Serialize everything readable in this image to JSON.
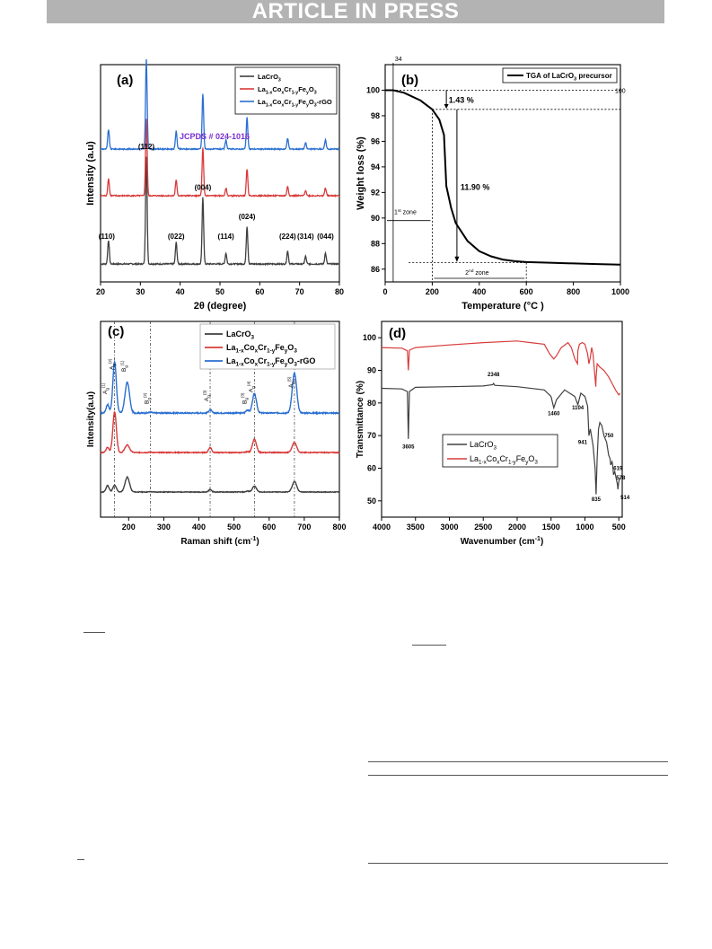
{
  "banner": "ARTICLE IN PRESS",
  "chart_data": [
    {
      "panel": "(a)",
      "type": "line",
      "xlabel": "2θ (degree)",
      "ylabel": "Intensity (a.u)",
      "xlim": [
        20,
        80
      ],
      "xticks": [
        20,
        30,
        40,
        50,
        60,
        70,
        80
      ],
      "annotation": "JCPDS # 024-1016",
      "peaks": [
        {
          "x": 22.0,
          "label": "(110)",
          "h": 0.22
        },
        {
          "x": 31.5,
          "label": "(112)",
          "h": 1.0
        },
        {
          "x": 39.0,
          "label": "(022)",
          "h": 0.2
        },
        {
          "x": 45.7,
          "label": "(004)",
          "h": 0.62
        },
        {
          "x": 51.5,
          "label": "(114)",
          "h": 0.1
        },
        {
          "x": 56.8,
          "label": "(024)",
          "h": 0.35
        },
        {
          "x": 67.0,
          "label": "(224)",
          "h": 0.12
        },
        {
          "x": 71.5,
          "label": "(314)",
          "h": 0.07
        },
        {
          "x": 76.5,
          "label": "(044)",
          "h": 0.1
        }
      ],
      "series": [
        {
          "name": "LaCrO",
          "sub": "3",
          "color": "#404040"
        },
        {
          "name": "La1-xCoxCr1-yFeyO3",
          "color": "#d93b3b"
        },
        {
          "name": "La1-xCoxCr1-yFeyO3-rGO",
          "color": "#2a6fd1"
        }
      ]
    },
    {
      "panel": "(b)",
      "type": "line",
      "xlabel": "Temperature (°C )",
      "ylabel": "Weight loss (%)",
      "xlim": [
        0,
        1000
      ],
      "ylim": [
        85,
        102
      ],
      "xticks": [
        0,
        200,
        400,
        600,
        800,
        1000
      ],
      "yticks": [
        86,
        88,
        90,
        92,
        94,
        96,
        98,
        100
      ],
      "series": [
        {
          "name": "TGA of LaCrO3 precursor",
          "color": "#000000",
          "x": [
            0,
            34,
            80,
            150,
            200,
            230,
            250,
            255,
            260,
            280,
            300,
            350,
            400,
            450,
            500,
            550,
            600,
            700,
            800,
            900,
            1000
          ],
          "y": [
            100,
            100,
            99.8,
            99.2,
            98.5,
            97.7,
            96.5,
            94.5,
            92.5,
            90.8,
            89.6,
            88.2,
            87.4,
            87.0,
            86.75,
            86.62,
            86.55,
            86.5,
            86.45,
            86.4,
            86.35
          ]
        }
      ],
      "annotations": [
        "34",
        "100",
        "1.43 %",
        "11.90 %",
        "1st zone",
        "2nd zone"
      ]
    },
    {
      "panel": "(c)",
      "type": "line",
      "xlabel": "Raman shift (cm-1)",
      "ylabel": "Intensity(a.u)",
      "xlim": [
        120,
        800
      ],
      "xticks": [
        200,
        300,
        400,
        500,
        600,
        700,
        800
      ],
      "guide_lines": [
        160,
        262,
        432,
        558,
        672
      ],
      "mode_labels": [
        "Ag(1)",
        "Ag(2)",
        "Bg(1)",
        "Bg(2)",
        "Ag(3)",
        "Bg(3)",
        "Ag(4)",
        "Ag(5)"
      ],
      "series": [
        {
          "name": "LaCrO3",
          "color": "#404040"
        },
        {
          "name": "La1-xCoxCr1-yFeyO3",
          "color": "#d93b3b"
        },
        {
          "name": "La1-xCoxCr1-yFeyO3-rGO",
          "color": "#2a6fd1"
        }
      ]
    },
    {
      "panel": "(d)",
      "type": "line",
      "xlabel": "Wavenumber (cm-1)",
      "ylabel": "Transmittance (%)",
      "xlim": [
        4000,
        450
      ],
      "ylim": [
        45,
        105
      ],
      "xticks": [
        4000,
        3500,
        3000,
        2500,
        2000,
        1500,
        1000,
        500
      ],
      "yticks": [
        50,
        60,
        70,
        80,
        90,
        100
      ],
      "peak_labels": [
        "3605",
        "2348",
        "1460",
        "1104",
        "941",
        "750",
        "835",
        "619",
        "578",
        "514"
      ],
      "series": [
        {
          "name": "LaCrO3",
          "color": "#404040",
          "x": [
            4000,
            3700,
            3620,
            3605,
            3590,
            3500,
            3000,
            2500,
            2360,
            2348,
            2330,
            2000,
            1600,
            1500,
            1460,
            1420,
            1300,
            1150,
            1104,
            1060,
            1000,
            960,
            941,
            920,
            880,
            850,
            835,
            820,
            800,
            780,
            750,
            720,
            680,
            650,
            630,
            619,
            600,
            590,
            578,
            560,
            540,
            520,
            514,
            500,
            480
          ],
          "y": [
            84.5,
            84.3,
            83.5,
            69.0,
            83.5,
            84.8,
            85.0,
            85.2,
            85.6,
            86.0,
            85.4,
            85.0,
            84.0,
            82.0,
            78.5,
            81.0,
            84.0,
            82.0,
            79.5,
            83.0,
            82.0,
            79.0,
            70.0,
            72.0,
            67.0,
            60.0,
            52.0,
            63.0,
            72.0,
            74.0,
            73.0,
            70.0,
            68.0,
            64.0,
            63.0,
            61.0,
            62.0,
            61.0,
            58.0,
            59.0,
            57.0,
            55.0,
            53.5,
            56.0,
            57.0
          ]
        },
        {
          "name": "La1-xCoxCr1-yFeyO3",
          "color": "#d93b3b",
          "x": [
            4000,
            3700,
            3620,
            3605,
            3590,
            3500,
            3000,
            2500,
            2000,
            1800,
            1600,
            1520,
            1460,
            1420,
            1350,
            1250,
            1200,
            1150,
            1110,
            1104,
            1080,
            1040,
            1000,
            960,
            941,
            920,
            900,
            880,
            860,
            840,
            835,
            820,
            780,
            720,
            650,
            600,
            550,
            500,
            480
          ],
          "y": [
            97.0,
            96.8,
            96.0,
            90.0,
            96.2,
            97.0,
            97.8,
            98.5,
            99.0,
            98.5,
            98.0,
            95.0,
            93.5,
            94.5,
            97.0,
            98.5,
            97.0,
            93.5,
            92.0,
            96.0,
            98.0,
            98.5,
            98.0,
            95.0,
            92.0,
            94.0,
            97.0,
            95.0,
            90.0,
            85.0,
            88.0,
            92.0,
            91.0,
            90.0,
            88.0,
            86.0,
            84.0,
            82.5,
            83.0
          ]
        }
      ]
    }
  ]
}
